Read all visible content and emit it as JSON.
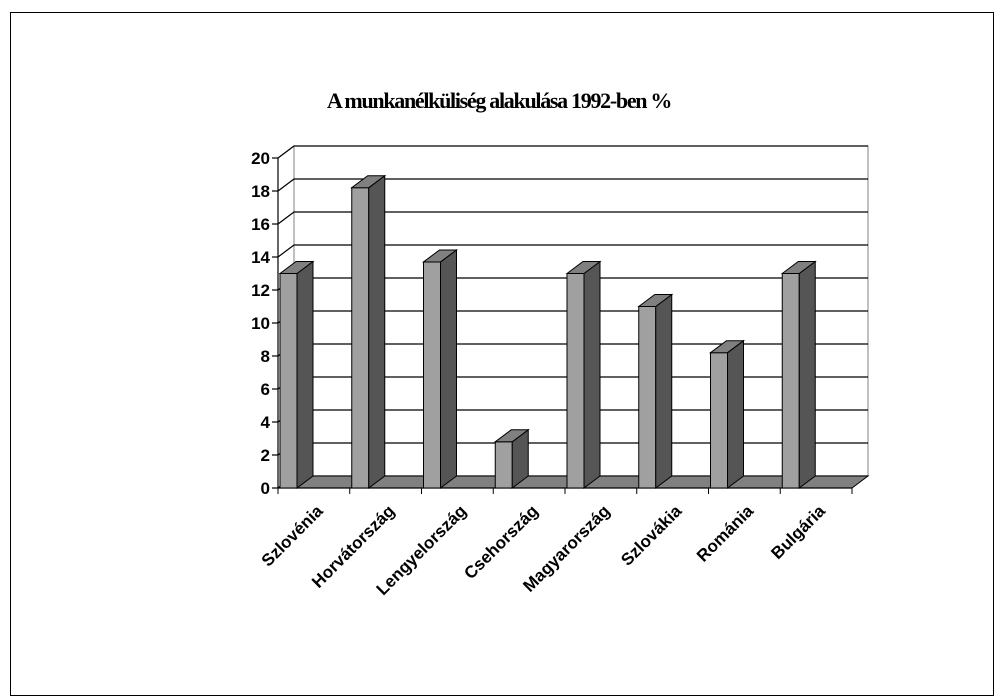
{
  "chart_data": {
    "type": "bar",
    "title": "A munkanélküliség alakulása 1992-ben %",
    "categories": [
      "Szlovénia",
      "Horvátország",
      "Lengyelország",
      "Csehország",
      "Magyarország",
      "Szlovákia",
      "Románia",
      "Bulgária"
    ],
    "values": [
      13,
      18.2,
      13.7,
      2.8,
      13,
      11,
      8.2,
      13
    ],
    "ylim": [
      0,
      20
    ],
    "yticks": [
      "0",
      "2",
      "4",
      "6",
      "8",
      "10",
      "12",
      "14",
      "16",
      "18",
      "20"
    ],
    "xlabel": "",
    "ylabel": "",
    "grid": true,
    "legend": "none",
    "colors": {
      "bar_front": "#a0a0a0",
      "bar_side": "#555555",
      "bar_top": "#808080",
      "floor": "#808080",
      "grid": "#000000"
    }
  }
}
